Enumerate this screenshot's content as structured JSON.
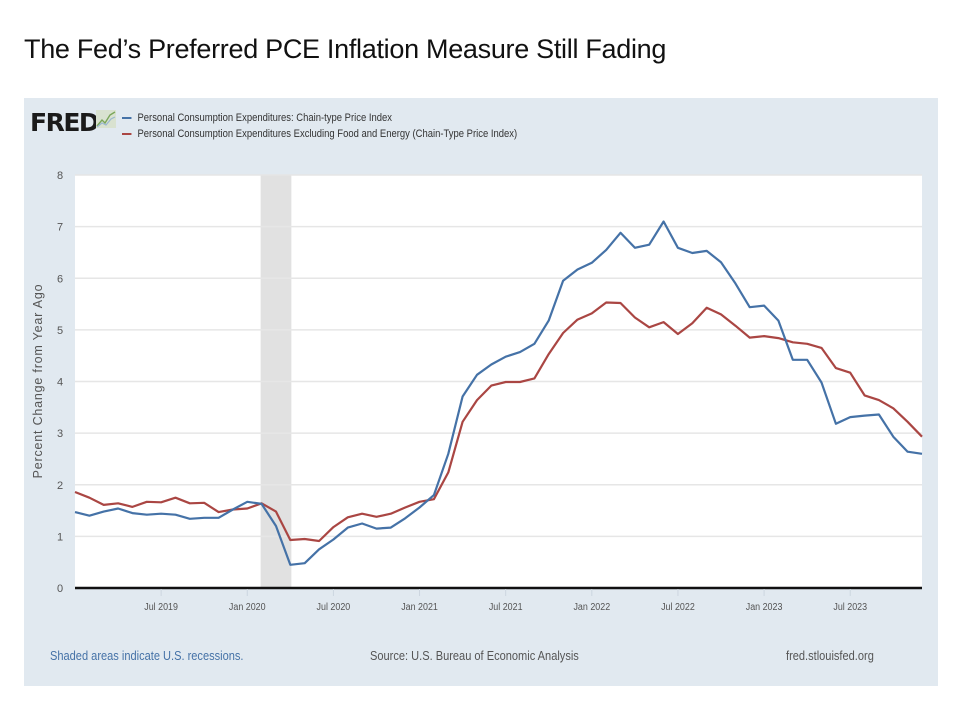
{
  "slide": {
    "title": "The Fed’s Preferred PCE Inflation Measure Still Fading"
  },
  "fred": {
    "logo_text": "FRED",
    "footer": {
      "recession_note": "Shaded areas indicate U.S. recessions.",
      "source": "Source: U.S. Bureau of Economic Analysis",
      "site": "fred.stlouisfed.org"
    },
    "colors": {
      "panel": "#e1e9f0",
      "series1": "#4572a7",
      "series2": "#aa4643",
      "recession": "#e1e1e1",
      "grid": "#e6e6e6",
      "footer_link": "#4572a7",
      "footer_text": "#555555"
    }
  },
  "chart_data": {
    "type": "line",
    "title": "",
    "xlabel": "",
    "ylabel": "Percent Change from Year Ago",
    "ylim": [
      0,
      8
    ],
    "yticks": [
      "0",
      "1",
      "2",
      "3",
      "4",
      "5",
      "6",
      "7",
      "8"
    ],
    "x_start": "2019-01",
    "x_end": "2023-12",
    "xticks": [
      {
        "label": "Jul 2019",
        "month_index": 6
      },
      {
        "label": "Jan 2020",
        "month_index": 12
      },
      {
        "label": "Jul 2020",
        "month_index": 18
      },
      {
        "label": "Jan 2021",
        "month_index": 24
      },
      {
        "label": "Jul 2021",
        "month_index": 30
      },
      {
        "label": "Jan 2022",
        "month_index": 36
      },
      {
        "label": "Jul 2022",
        "month_index": 42
      },
      {
        "label": "Jan 2023",
        "month_index": 48
      },
      {
        "label": "Jul 2023",
        "month_index": 54
      }
    ],
    "recessions": [
      {
        "start_month_index": 13,
        "end_month_index": 15
      }
    ],
    "grid": true,
    "legend_position": "top-left",
    "series": [
      {
        "name": "Personal Consumption Expenditures: Chain-type Price Index",
        "color": "#4572a7",
        "values": [
          1.47,
          1.4,
          1.48,
          1.54,
          1.45,
          1.42,
          1.44,
          1.42,
          1.34,
          1.36,
          1.36,
          1.52,
          1.67,
          1.63,
          1.2,
          0.45,
          0.48,
          0.75,
          0.94,
          1.17,
          1.25,
          1.15,
          1.17,
          1.35,
          1.56,
          1.8,
          2.6,
          3.71,
          4.13,
          4.33,
          4.48,
          4.57,
          4.73,
          5.18,
          5.95,
          6.17,
          6.3,
          6.55,
          6.88,
          6.59,
          6.65,
          7.1,
          6.59,
          6.49,
          6.53,
          6.31,
          5.9,
          5.44,
          5.47,
          5.18,
          4.42,
          4.42,
          3.98,
          3.18,
          3.31,
          3.34,
          3.36,
          2.93,
          2.64,
          2.6
        ]
      },
      {
        "name": "Personal Consumption Expenditures Excluding Food and Energy (Chain-Type Price Index)",
        "color": "#aa4643",
        "values": [
          1.86,
          1.75,
          1.61,
          1.64,
          1.57,
          1.67,
          1.66,
          1.75,
          1.64,
          1.65,
          1.47,
          1.52,
          1.54,
          1.64,
          1.48,
          0.93,
          0.95,
          0.91,
          1.18,
          1.37,
          1.44,
          1.38,
          1.44,
          1.56,
          1.67,
          1.72,
          2.24,
          3.22,
          3.64,
          3.92,
          3.99,
          3.99,
          4.06,
          4.53,
          4.94,
          5.2,
          5.32,
          5.53,
          5.52,
          5.24,
          5.05,
          5.15,
          4.92,
          5.13,
          5.43,
          5.3,
          5.08,
          4.85,
          4.88,
          4.84,
          4.76,
          4.73,
          4.65,
          4.26,
          4.17,
          3.73,
          3.64,
          3.48,
          3.22,
          2.93
        ]
      }
    ]
  }
}
